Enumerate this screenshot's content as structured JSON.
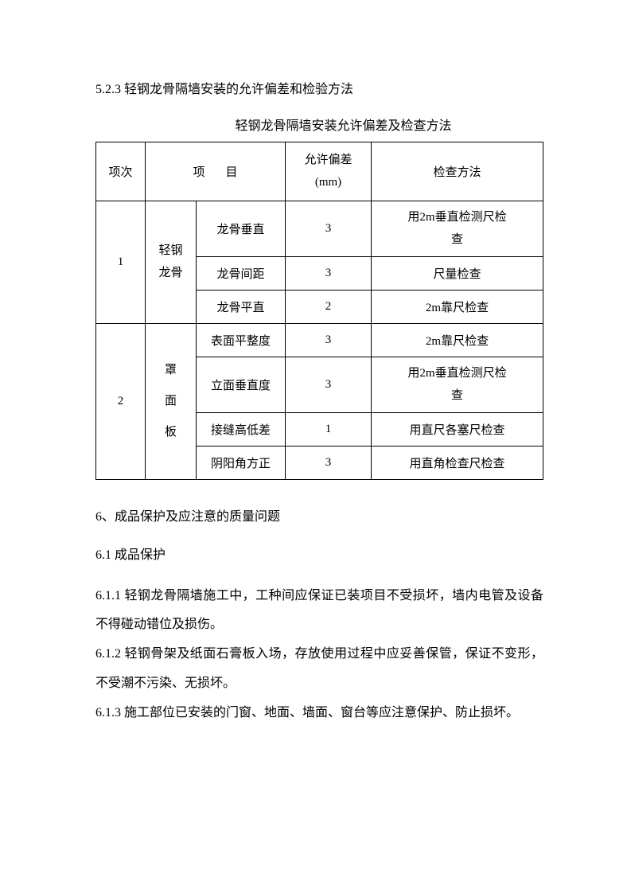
{
  "heading_523": "5.2.3 轻钢龙骨隔墙安装的允许偏差和检验方法",
  "table_caption": "轻钢龙骨隔墙安装允许偏差及检查方法",
  "table": {
    "headers": {
      "num": "项次",
      "item": "项目",
      "tolerance_line1": "允许偏差",
      "tolerance_line2": "(mm)",
      "method": "检查方法"
    },
    "group1": {
      "num": "1",
      "category_line1": "轻钢",
      "category_line2": "龙骨",
      "rows": [
        {
          "item": "龙骨垂直",
          "tol": "3",
          "method_line1": "用2m垂直检测尺检",
          "method_line2": "查"
        },
        {
          "item": "龙骨间距",
          "tol": "3",
          "method": "尺量检查"
        },
        {
          "item": "龙骨平直",
          "tol": "2",
          "method": "2m靠尺检查"
        }
      ]
    },
    "group2": {
      "num": "2",
      "category_line1": "罩",
      "category_line2": "面",
      "category_line3": "板",
      "rows": [
        {
          "item": "表面平整度",
          "tol": "3",
          "method": "2m靠尺检查"
        },
        {
          "item": "立面垂直度",
          "tol": "3",
          "method_line1": "用2m垂直检测尺检",
          "method_line2": "查"
        },
        {
          "item": "接缝高低差",
          "tol": "1",
          "method": "用直尺各塞尺检查"
        },
        {
          "item": "阴阳角方正",
          "tol": "3",
          "method": "用直角检查尺检查"
        }
      ]
    }
  },
  "section6_title": "6、成品保护及应注意的质量问题",
  "section61_title": "6.1 成品保护",
  "para_611": "6.1.1 轻钢龙骨隔墙施工中，工种间应保证已装项目不受损坏，墙内电管及设备不得碰动错位及损伤。",
  "para_612": "6.1.2 轻钢骨架及纸面石膏板入场，存放使用过程中应妥善保管，保证不变形，不受潮不污染、无损坏。",
  "para_613": "6.1.3 施工部位已安装的门窗、地面、墙面、窗台等应注意保护、防止损坏。"
}
